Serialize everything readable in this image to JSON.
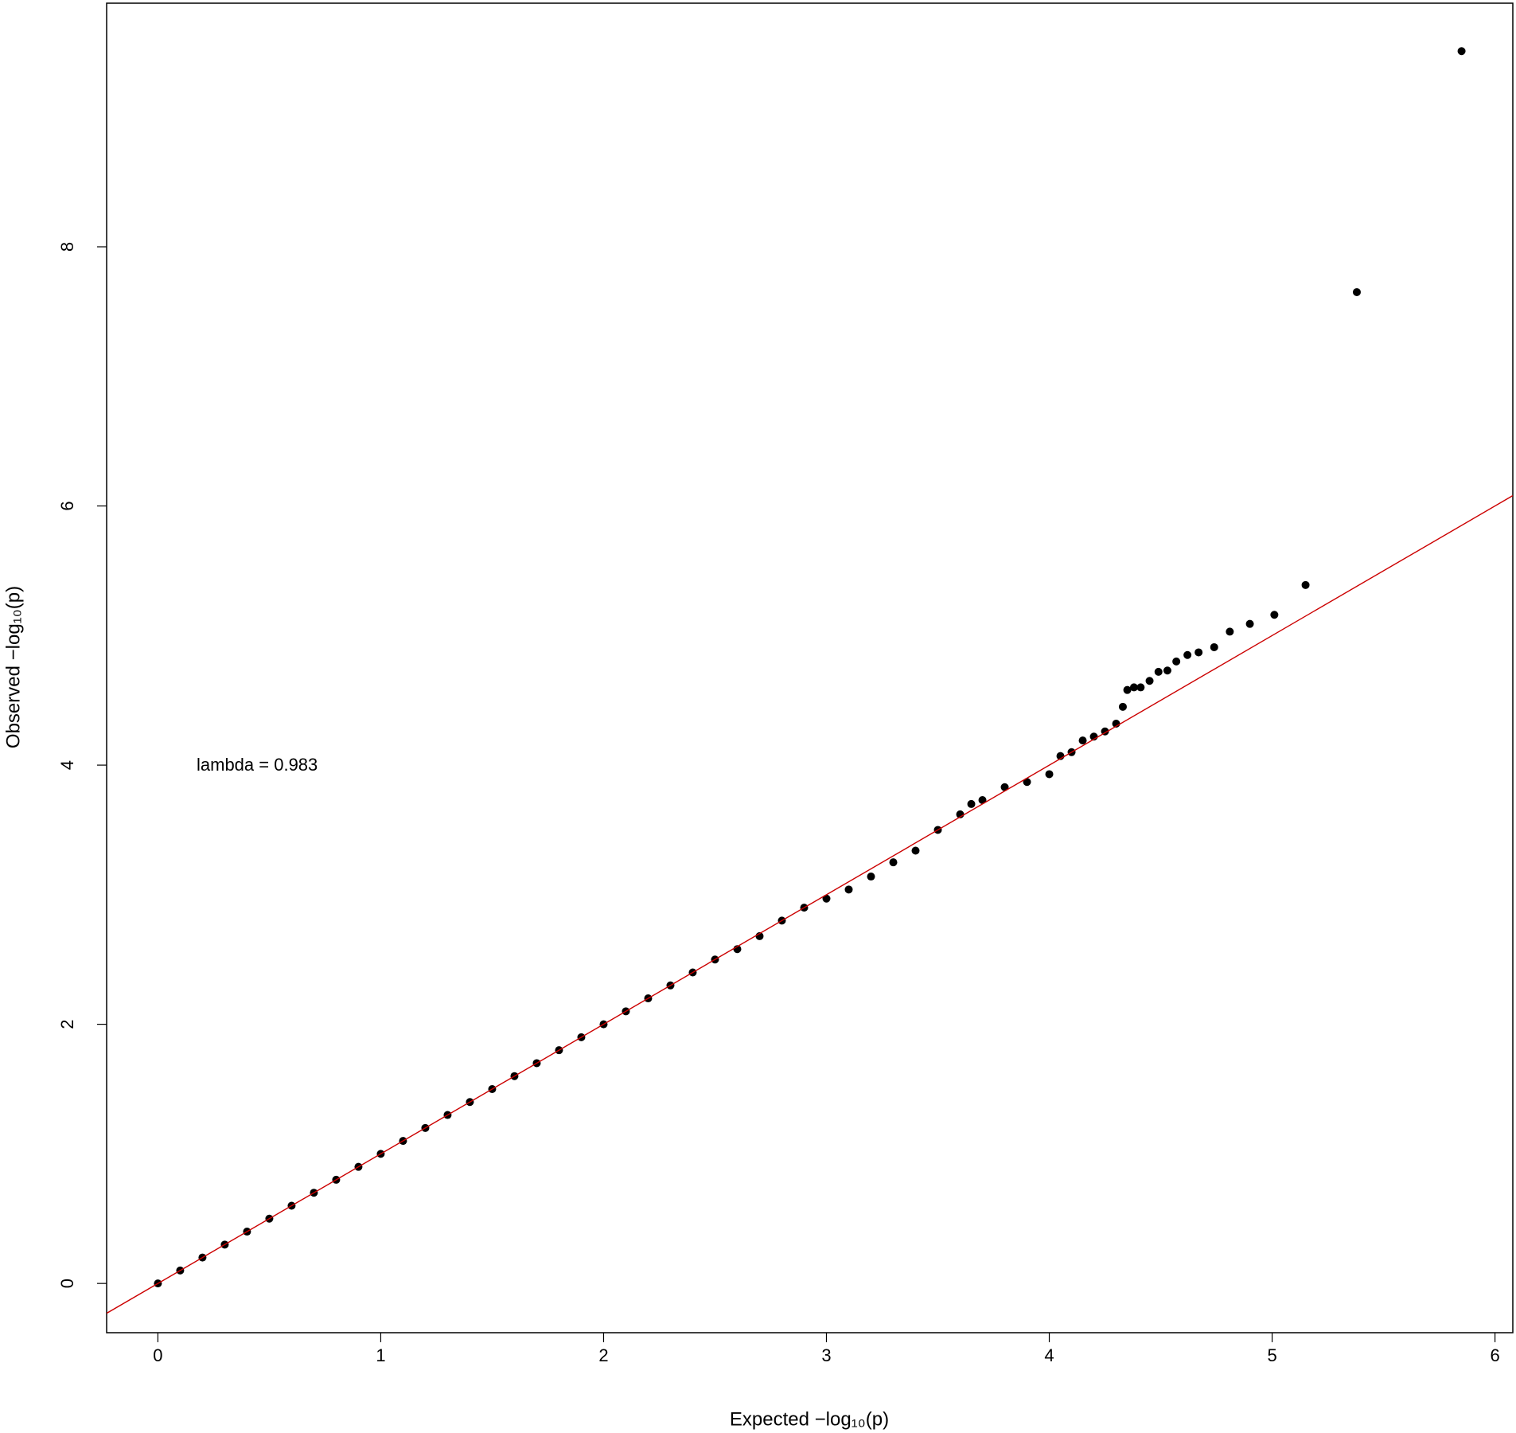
{
  "chart_data": {
    "type": "scatter",
    "xlabel": "Expected −log₁₀(p)",
    "ylabel": "Observed −log₁₀(p)",
    "annotation": "lambda = 0.983",
    "x": [
      0,
      0.1,
      0.2,
      0.3,
      0.4,
      0.5,
      0.6,
      0.7,
      0.8,
      0.9,
      1,
      1.1,
      1.2,
      1.3,
      1.4,
      1.5,
      1.6,
      1.7,
      1.8,
      1.9,
      2,
      2.1,
      2.2,
      2.3,
      2.4,
      2.5,
      2.6,
      2.7,
      2.8,
      2.9,
      3.0,
      3.1,
      3.2,
      3.3,
      3.4,
      3.5,
      3.6,
      3.65,
      3.7,
      3.8,
      3.9,
      4.0,
      4.05,
      4.1,
      4.15,
      4.2,
      4.25,
      4.3,
      4.33,
      4.35,
      4.38,
      4.41,
      4.45,
      4.49,
      4.53,
      4.57,
      4.62,
      4.67,
      4.74,
      4.81,
      4.9,
      5.01,
      5.15,
      5.38,
      5.85
    ],
    "y": [
      0,
      0.1,
      0.2,
      0.3,
      0.4,
      0.5,
      0.6,
      0.7,
      0.8,
      0.9,
      1,
      1.1,
      1.2,
      1.3,
      1.4,
      1.5,
      1.6,
      1.7,
      1.8,
      1.9,
      2,
      2.1,
      2.2,
      2.3,
      2.4,
      2.5,
      2.58,
      2.68,
      2.8,
      2.9,
      2.97,
      3.04,
      3.14,
      3.25,
      3.34,
      3.5,
      3.62,
      3.7,
      3.73,
      3.83,
      3.87,
      3.93,
      4.07,
      4.1,
      4.19,
      4.22,
      4.26,
      4.32,
      4.45,
      4.58,
      4.6,
      4.6,
      4.65,
      4.72,
      4.73,
      4.8,
      4.85,
      4.87,
      4.91,
      5.03,
      5.09,
      5.16,
      5.39,
      7.65,
      9.51
    ],
    "color": "#000000",
    "reference_line": {
      "intercept": 0,
      "slope": 1,
      "color": "#cc0000"
    },
    "xlim": [
      -0.23,
      6.08
    ],
    "xticks": [
      0,
      1,
      2,
      3,
      4,
      5,
      6
    ],
    "ylim": [
      -0.38,
      9.88
    ],
    "yticks": [
      0,
      2,
      4,
      6,
      8
    ],
    "grid": false
  }
}
